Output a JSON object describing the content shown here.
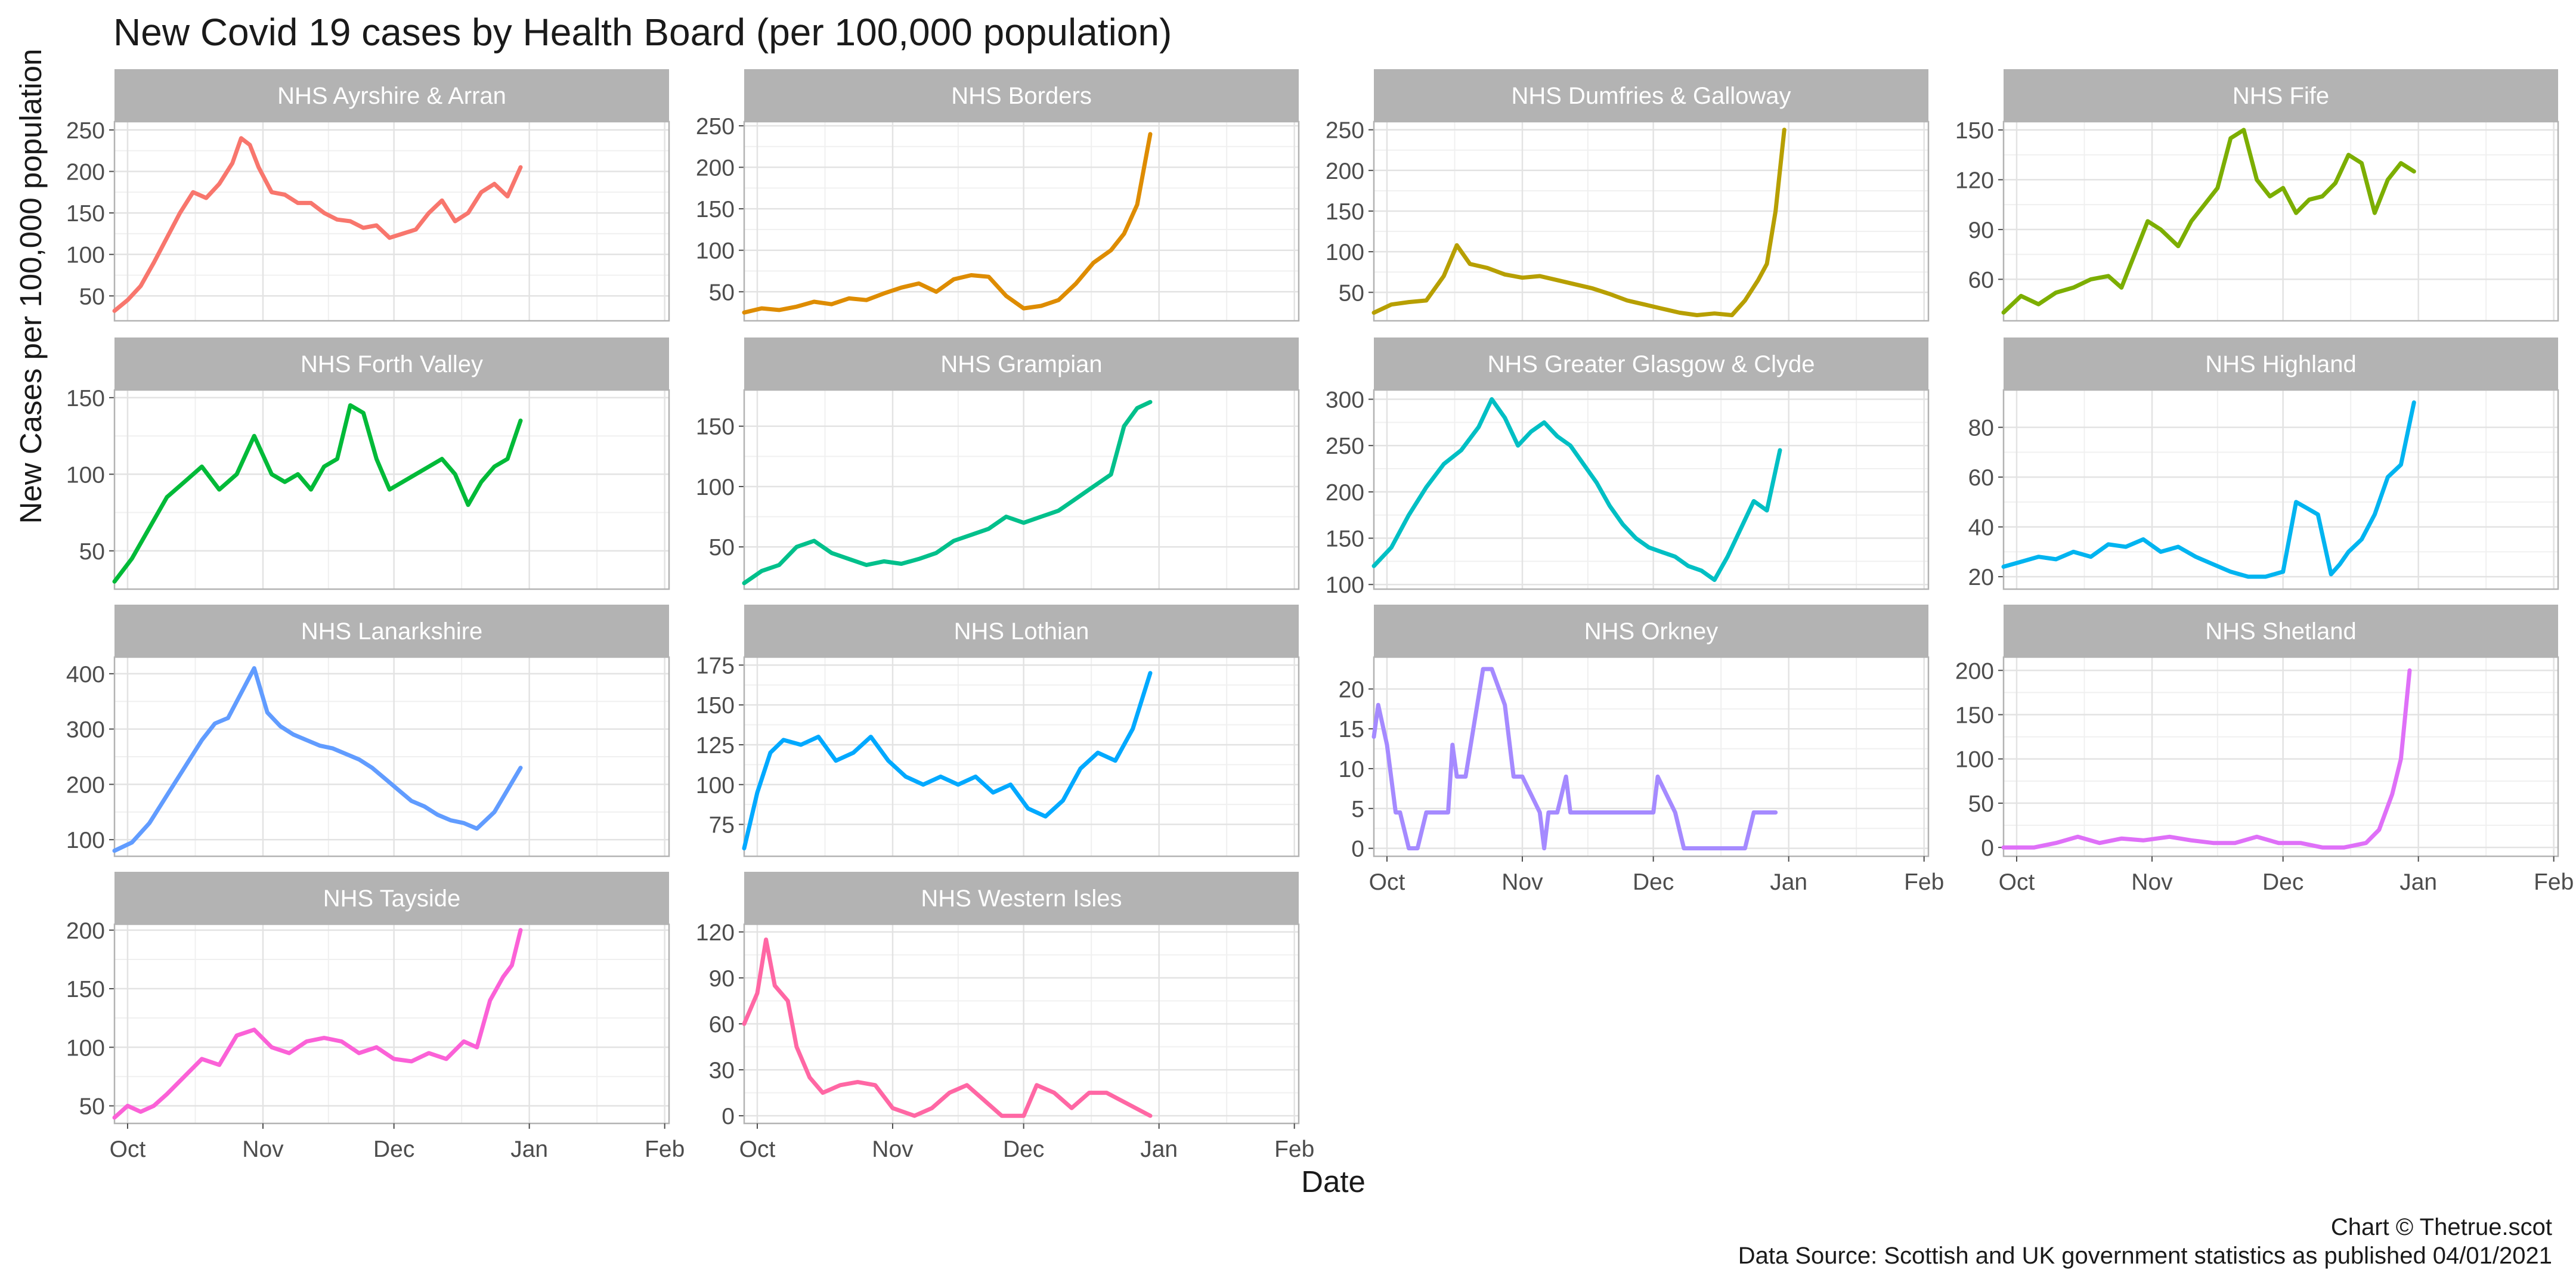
{
  "title": "New Covid 19 cases by Health Board (per 100,000 population)",
  "ylabel": "New Cases per 100,000 population",
  "xlabel": "Date",
  "caption_line1": "Chart © Thetrue.scot",
  "caption_line2": "Data Source: Scottish and UK government statistics as published 04/01/2021",
  "x_ticks": [
    "Oct",
    "Nov",
    "Dec",
    "Jan",
    "Feb"
  ],
  "chart_data": {
    "type": "line",
    "x_axis": {
      "type": "date",
      "start": "2020-09-28",
      "end": "2021-02-02",
      "ticks": [
        "2020-10-01",
        "2020-11-01",
        "2020-12-01",
        "2021-01-01",
        "2021-02-01"
      ],
      "tick_labels": [
        "Oct",
        "Nov",
        "Dec",
        "Jan",
        "Feb"
      ]
    },
    "facets": true,
    "grid": true,
    "series": [
      {
        "name": "NHS Ayrshire & Arran",
        "color": "#f8766d",
        "ylim": [
          20,
          260
        ],
        "yticks": [
          50,
          100,
          150,
          200,
          250
        ],
        "x": [
          "2020-09-28",
          "2020-10-01",
          "2020-10-04",
          "2020-10-07",
          "2020-10-10",
          "2020-10-13",
          "2020-10-16",
          "2020-10-19",
          "2020-10-22",
          "2020-10-25",
          "2020-10-27",
          "2020-10-29",
          "2020-10-31",
          "2020-11-03",
          "2020-11-06",
          "2020-11-09",
          "2020-11-12",
          "2020-11-15",
          "2020-11-18",
          "2020-11-21",
          "2020-11-24",
          "2020-11-27",
          "2020-11-30",
          "2020-12-03",
          "2020-12-06",
          "2020-12-09",
          "2020-12-12",
          "2020-12-15",
          "2020-12-18",
          "2020-12-21",
          "2020-12-24",
          "2020-12-27",
          "2020-12-30"
        ],
        "values": [
          32,
          45,
          62,
          90,
          120,
          150,
          175,
          168,
          185,
          210,
          240,
          232,
          205,
          175,
          172,
          162,
          162,
          150,
          142,
          140,
          132,
          135,
          120,
          125,
          130,
          150,
          165,
          140,
          150,
          175,
          185,
          170,
          205
        ]
      },
      {
        "name": "NHS Borders",
        "color": "#de8c00",
        "ylim": [
          15,
          255
        ],
        "yticks": [
          50,
          100,
          150,
          200,
          250
        ],
        "x": [
          "2020-09-28",
          "2020-10-02",
          "2020-10-06",
          "2020-10-10",
          "2020-10-14",
          "2020-10-18",
          "2020-10-22",
          "2020-10-26",
          "2020-10-30",
          "2020-11-03",
          "2020-11-07",
          "2020-11-11",
          "2020-11-15",
          "2020-11-19",
          "2020-11-23",
          "2020-11-27",
          "2020-12-01",
          "2020-12-05",
          "2020-12-09",
          "2020-12-13",
          "2020-12-17",
          "2020-12-21",
          "2020-12-24",
          "2020-12-27",
          "2020-12-30"
        ],
        "values": [
          25,
          30,
          28,
          32,
          38,
          35,
          42,
          40,
          48,
          55,
          60,
          50,
          65,
          70,
          68,
          45,
          30,
          33,
          40,
          60,
          85,
          100,
          120,
          155,
          240
        ]
      },
      {
        "name": "NHS Dumfries & Galloway",
        "color": "#b79f00",
        "ylim": [
          15,
          260
        ],
        "yticks": [
          50,
          100,
          150,
          200,
          250
        ],
        "x": [
          "2020-09-28",
          "2020-10-02",
          "2020-10-06",
          "2020-10-10",
          "2020-10-14",
          "2020-10-17",
          "2020-10-20",
          "2020-10-24",
          "2020-10-28",
          "2020-11-01",
          "2020-11-05",
          "2020-11-09",
          "2020-11-13",
          "2020-11-17",
          "2020-11-21",
          "2020-11-25",
          "2020-11-29",
          "2020-12-03",
          "2020-12-07",
          "2020-12-11",
          "2020-12-15",
          "2020-12-19",
          "2020-12-22",
          "2020-12-25",
          "2020-12-27",
          "2020-12-29",
          "2020-12-31"
        ],
        "values": [
          25,
          35,
          38,
          40,
          70,
          108,
          85,
          80,
          72,
          68,
          70,
          65,
          60,
          55,
          48,
          40,
          35,
          30,
          25,
          22,
          24,
          22,
          40,
          65,
          85,
          150,
          250
        ]
      },
      {
        "name": "NHS Fife",
        "color": "#7cae00",
        "ylim": [
          35,
          155
        ],
        "yticks": [
          60,
          90,
          120,
          150
        ],
        "x": [
          "2020-09-28",
          "2020-10-02",
          "2020-10-06",
          "2020-10-10",
          "2020-10-14",
          "2020-10-18",
          "2020-10-22",
          "2020-10-25",
          "2020-10-28",
          "2020-10-31",
          "2020-11-03",
          "2020-11-07",
          "2020-11-10",
          "2020-11-13",
          "2020-11-16",
          "2020-11-19",
          "2020-11-22",
          "2020-11-25",
          "2020-11-28",
          "2020-12-01",
          "2020-12-04",
          "2020-12-07",
          "2020-12-10",
          "2020-12-13",
          "2020-12-16",
          "2020-12-19",
          "2020-12-22",
          "2020-12-25",
          "2020-12-28",
          "2020-12-31"
        ],
        "values": [
          40,
          50,
          45,
          52,
          55,
          60,
          62,
          55,
          75,
          95,
          90,
          80,
          95,
          105,
          115,
          145,
          150,
          120,
          110,
          115,
          100,
          108,
          110,
          118,
          135,
          130,
          100,
          120,
          130,
          125
        ]
      },
      {
        "name": "NHS Forth Valley",
        "color": "#00ba38",
        "ylim": [
          25,
          155
        ],
        "yticks": [
          50,
          100,
          150
        ],
        "x": [
          "2020-09-28",
          "2020-10-02",
          "2020-10-06",
          "2020-10-10",
          "2020-10-14",
          "2020-10-18",
          "2020-10-22",
          "2020-10-26",
          "2020-10-30",
          "2020-11-03",
          "2020-11-06",
          "2020-11-09",
          "2020-11-12",
          "2020-11-15",
          "2020-11-18",
          "2020-11-21",
          "2020-11-24",
          "2020-11-27",
          "2020-11-30",
          "2020-12-03",
          "2020-12-06",
          "2020-12-09",
          "2020-12-12",
          "2020-12-15",
          "2020-12-18",
          "2020-12-21",
          "2020-12-24",
          "2020-12-27",
          "2020-12-30"
        ],
        "values": [
          30,
          45,
          65,
          85,
          95,
          105,
          90,
          100,
          125,
          100,
          95,
          100,
          90,
          105,
          110,
          145,
          140,
          110,
          90,
          95,
          100,
          105,
          110,
          100,
          80,
          95,
          105,
          110,
          135
        ]
      },
      {
        "name": "NHS Grampian",
        "color": "#00c08b",
        "ylim": [
          15,
          180
        ],
        "yticks": [
          50,
          100,
          150
        ],
        "x": [
          "2020-09-28",
          "2020-10-02",
          "2020-10-06",
          "2020-10-10",
          "2020-10-14",
          "2020-10-18",
          "2020-10-22",
          "2020-10-26",
          "2020-10-30",
          "2020-11-03",
          "2020-11-07",
          "2020-11-11",
          "2020-11-15",
          "2020-11-19",
          "2020-11-23",
          "2020-11-27",
          "2020-12-01",
          "2020-12-05",
          "2020-12-09",
          "2020-12-13",
          "2020-12-17",
          "2020-12-21",
          "2020-12-24",
          "2020-12-27",
          "2020-12-30"
        ],
        "values": [
          20,
          30,
          35,
          50,
          55,
          45,
          40,
          35,
          38,
          36,
          40,
          45,
          55,
          60,
          65,
          75,
          70,
          75,
          80,
          90,
          100,
          110,
          150,
          165,
          170
        ]
      },
      {
        "name": "NHS Greater Glasgow & Clyde",
        "color": "#00bfc4",
        "ylim": [
          95,
          310
        ],
        "yticks": [
          100,
          150,
          200,
          250,
          300
        ],
        "x": [
          "2020-09-28",
          "2020-10-02",
          "2020-10-06",
          "2020-10-10",
          "2020-10-14",
          "2020-10-18",
          "2020-10-22",
          "2020-10-25",
          "2020-10-28",
          "2020-10-31",
          "2020-11-03",
          "2020-11-06",
          "2020-11-09",
          "2020-11-12",
          "2020-11-15",
          "2020-11-18",
          "2020-11-21",
          "2020-11-24",
          "2020-11-27",
          "2020-11-30",
          "2020-12-03",
          "2020-12-06",
          "2020-12-09",
          "2020-12-12",
          "2020-12-15",
          "2020-12-18",
          "2020-12-21",
          "2020-12-24",
          "2020-12-27",
          "2020-12-30"
        ],
        "values": [
          120,
          140,
          175,
          205,
          230,
          245,
          270,
          300,
          280,
          250,
          265,
          275,
          260,
          250,
          230,
          210,
          185,
          165,
          150,
          140,
          135,
          130,
          120,
          115,
          105,
          130,
          160,
          190,
          180,
          245
        ]
      },
      {
        "name": "NHS Highland",
        "color": "#00b4f0",
        "ylim": [
          15,
          95
        ],
        "yticks": [
          20,
          40,
          60,
          80
        ],
        "x": [
          "2020-09-28",
          "2020-10-02",
          "2020-10-06",
          "2020-10-10",
          "2020-10-14",
          "2020-10-18",
          "2020-10-22",
          "2020-10-26",
          "2020-10-30",
          "2020-11-03",
          "2020-11-07",
          "2020-11-11",
          "2020-11-15",
          "2020-11-19",
          "2020-11-23",
          "2020-11-27",
          "2020-12-01",
          "2020-12-04",
          "2020-12-06",
          "2020-12-09",
          "2020-12-12",
          "2020-12-14",
          "2020-12-16",
          "2020-12-19",
          "2020-12-22",
          "2020-12-25",
          "2020-12-28",
          "2020-12-31"
        ],
        "values": [
          24,
          26,
          28,
          27,
          30,
          28,
          33,
          32,
          35,
          30,
          32,
          28,
          25,
          22,
          20,
          20,
          22,
          50,
          48,
          45,
          21,
          25,
          30,
          35,
          45,
          60,
          65,
          90
        ]
      },
      {
        "name": "NHS Lanarkshire",
        "color": "#619cff",
        "ylim": [
          70,
          430
        ],
        "yticks": [
          100,
          200,
          300,
          400
        ],
        "x": [
          "2020-09-28",
          "2020-10-02",
          "2020-10-06",
          "2020-10-10",
          "2020-10-14",
          "2020-10-18",
          "2020-10-21",
          "2020-10-24",
          "2020-10-27",
          "2020-10-30",
          "2020-11-02",
          "2020-11-05",
          "2020-11-08",
          "2020-11-11",
          "2020-11-14",
          "2020-11-17",
          "2020-11-20",
          "2020-11-23",
          "2020-11-26",
          "2020-11-29",
          "2020-12-02",
          "2020-12-05",
          "2020-12-08",
          "2020-12-11",
          "2020-12-14",
          "2020-12-17",
          "2020-12-20",
          "2020-12-24",
          "2020-12-27",
          "2020-12-30"
        ],
        "values": [
          80,
          95,
          130,
          180,
          230,
          280,
          310,
          320,
          365,
          410,
          330,
          305,
          290,
          280,
          270,
          265,
          255,
          245,
          230,
          210,
          190,
          170,
          160,
          145,
          135,
          130,
          120,
          150,
          190,
          230
        ]
      },
      {
        "name": "NHS Lothian",
        "color": "#00a9ff",
        "ylim": [
          55,
          180
        ],
        "yticks": [
          75,
          100,
          125,
          150,
          175
        ],
        "x": [
          "2020-09-28",
          "2020-10-01",
          "2020-10-04",
          "2020-10-07",
          "2020-10-11",
          "2020-10-15",
          "2020-10-19",
          "2020-10-23",
          "2020-10-27",
          "2020-10-31",
          "2020-11-04",
          "2020-11-08",
          "2020-11-12",
          "2020-11-16",
          "2020-11-20",
          "2020-11-24",
          "2020-11-28",
          "2020-12-02",
          "2020-12-06",
          "2020-12-10",
          "2020-12-14",
          "2020-12-18",
          "2020-12-22",
          "2020-12-26",
          "2020-12-30"
        ],
        "values": [
          60,
          95,
          120,
          128,
          125,
          130,
          115,
          120,
          130,
          115,
          105,
          100,
          105,
          100,
          105,
          95,
          100,
          85,
          80,
          90,
          110,
          120,
          115,
          135,
          170
        ]
      },
      {
        "name": "NHS Orkney",
        "color": "#a58aff",
        "ylim": [
          -1,
          24
        ],
        "yticks": [
          0,
          5,
          10,
          15,
          20
        ],
        "x": [
          "2020-09-28",
          "2020-09-29",
          "2020-10-01",
          "2020-10-03",
          "2020-10-04",
          "2020-10-06",
          "2020-10-08",
          "2020-10-10",
          "2020-10-12",
          "2020-10-15",
          "2020-10-16",
          "2020-10-17",
          "2020-10-19",
          "2020-10-23",
          "2020-10-25",
          "2020-10-28",
          "2020-10-30",
          "2020-11-01",
          "2020-11-05",
          "2020-11-06",
          "2020-11-07",
          "2020-11-09",
          "2020-11-11",
          "2020-11-12",
          "2020-11-15",
          "2020-11-20",
          "2020-11-25",
          "2020-12-01",
          "2020-12-02",
          "2020-12-06",
          "2020-12-08",
          "2020-12-15",
          "2020-12-22",
          "2020-12-24",
          "2020-12-29"
        ],
        "values": [
          14,
          18,
          13,
          4.5,
          4.5,
          0,
          0,
          4.5,
          4.5,
          4.5,
          13,
          9,
          9,
          22.5,
          22.5,
          18,
          9,
          9,
          4.5,
          0,
          4.5,
          4.5,
          9,
          4.5,
          4.5,
          4.5,
          4.5,
          4.5,
          9,
          4.5,
          0,
          0,
          0,
          4.5,
          4.5
        ]
      },
      {
        "name": "NHS Shetland",
        "color": "#df70f8",
        "ylim": [
          -10,
          215
        ],
        "yticks": [
          0,
          50,
          100,
          150,
          200
        ],
        "x": [
          "2020-09-28",
          "2020-10-05",
          "2020-10-10",
          "2020-10-15",
          "2020-10-20",
          "2020-10-25",
          "2020-10-30",
          "2020-11-05",
          "2020-11-10",
          "2020-11-15",
          "2020-11-20",
          "2020-11-25",
          "2020-11-30",
          "2020-12-05",
          "2020-12-10",
          "2020-12-15",
          "2020-12-20",
          "2020-12-23",
          "2020-12-26",
          "2020-12-28",
          "2020-12-30"
        ],
        "values": [
          0,
          0,
          5,
          12,
          5,
          10,
          8,
          12,
          8,
          5,
          5,
          12,
          5,
          5,
          0,
          0,
          5,
          20,
          60,
          100,
          200
        ]
      },
      {
        "name": "NHS Tayside",
        "color": "#fb61d7",
        "ylim": [
          35,
          205
        ],
        "yticks": [
          50,
          100,
          150,
          200
        ],
        "x": [
          "2020-09-28",
          "2020-10-01",
          "2020-10-04",
          "2020-10-07",
          "2020-10-10",
          "2020-10-14",
          "2020-10-18",
          "2020-10-22",
          "2020-10-26",
          "2020-10-30",
          "2020-11-03",
          "2020-11-07",
          "2020-11-11",
          "2020-11-15",
          "2020-11-19",
          "2020-11-23",
          "2020-11-27",
          "2020-12-01",
          "2020-12-05",
          "2020-12-09",
          "2020-12-13",
          "2020-12-17",
          "2020-12-20",
          "2020-12-23",
          "2020-12-26",
          "2020-12-28",
          "2020-12-30"
        ],
        "values": [
          40,
          50,
          45,
          50,
          60,
          75,
          90,
          85,
          110,
          115,
          100,
          95,
          105,
          108,
          105,
          95,
          100,
          90,
          88,
          95,
          90,
          105,
          100,
          140,
          160,
          170,
          200
        ]
      },
      {
        "name": "NHS Western Isles",
        "color": "#ff67a4",
        "ylim": [
          -5,
          125
        ],
        "yticks": [
          0,
          30,
          60,
          90,
          120
        ],
        "x": [
          "2020-09-28",
          "2020-10-01",
          "2020-10-03",
          "2020-10-05",
          "2020-10-08",
          "2020-10-10",
          "2020-10-13",
          "2020-10-16",
          "2020-10-20",
          "2020-10-24",
          "2020-10-28",
          "2020-11-01",
          "2020-11-06",
          "2020-11-10",
          "2020-11-14",
          "2020-11-18",
          "2020-11-22",
          "2020-11-26",
          "2020-12-01",
          "2020-12-04",
          "2020-12-08",
          "2020-12-12",
          "2020-12-16",
          "2020-12-20",
          "2020-12-30"
        ],
        "values": [
          60,
          80,
          115,
          85,
          75,
          45,
          25,
          15,
          20,
          22,
          20,
          5,
          0,
          5,
          15,
          20,
          10,
          0,
          0,
          20,
          15,
          5,
          15,
          15,
          0
        ]
      }
    ]
  }
}
